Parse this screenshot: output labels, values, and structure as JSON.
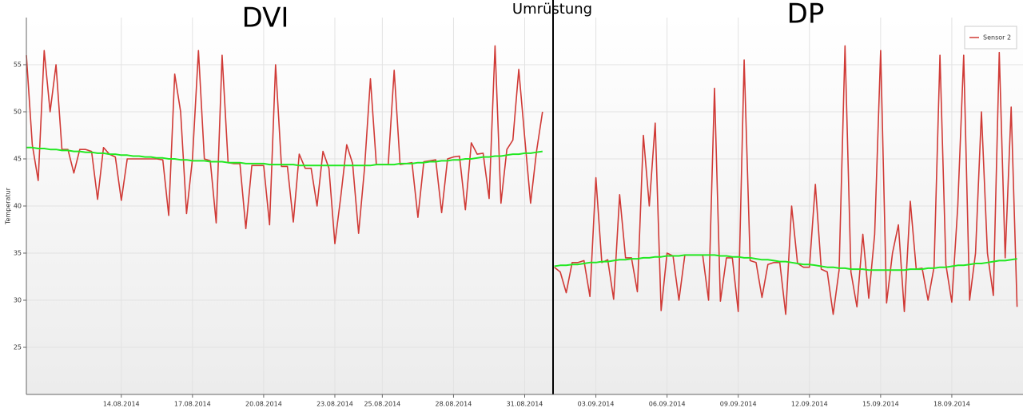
{
  "chart_data": {
    "type": "line",
    "y_label": "Temperatur",
    "annotations": [
      "DVI",
      "Umrüstung",
      "DP"
    ],
    "xlim": [
      "2014-08-10",
      "2014-09-21"
    ],
    "xticks": [
      {
        "value": "2014-08-14",
        "label": "14.08.2014"
      },
      {
        "value": "2014-08-17",
        "label": "17.08.2014"
      },
      {
        "value": "2014-08-20",
        "label": "20.08.2014"
      },
      {
        "value": "2014-08-23",
        "label": "23.08.2014"
      },
      {
        "value": "2014-08-25",
        "label": "25.08.2014"
      },
      {
        "value": "2014-08-28",
        "label": "28.08.2014"
      },
      {
        "value": "2014-08-31",
        "label": "31.08.2014"
      },
      {
        "value": "2014-09-03",
        "label": "03.09.2014"
      },
      {
        "value": "2014-09-06",
        "label": "06.09.2014"
      },
      {
        "value": "2014-09-09",
        "label": "09.09.2014"
      },
      {
        "value": "2014-09-12",
        "label": "12.09.2014"
      },
      {
        "value": "2014-09-15",
        "label": "15.09.2014"
      },
      {
        "value": "2014-09-18",
        "label": "18.09.2014"
      }
    ],
    "ylim": [
      20,
      60
    ],
    "yticks": [
      25,
      30,
      35,
      40,
      45,
      50,
      55
    ],
    "grid": true,
    "legend": "top-right",
    "series": [
      {
        "name": "Sensor 2",
        "color": "#d03a36",
        "values": [
          56,
          46.5,
          42.7,
          56.5,
          50,
          55,
          46,
          46,
          43.5,
          46,
          46,
          45.8,
          40.7,
          46.2,
          45.5,
          45.2,
          40.6,
          45,
          45,
          45,
          45,
          45,
          45,
          44.9,
          39,
          54,
          50,
          39.2,
          45,
          56.5,
          45,
          44.8,
          38.2,
          56,
          44.6,
          44.5,
          44.5,
          37.6,
          44.3,
          44.3,
          44.3,
          38,
          55,
          44.2,
          44.2,
          38.3,
          45.5,
          44,
          44,
          40,
          45.8,
          44,
          36,
          41,
          46.5,
          44.5,
          37.1,
          44,
          53.5,
          44.4,
          44.4,
          44.4,
          54.4,
          44.4,
          44.5,
          44.6,
          38.8,
          44.7,
          44.8,
          44.9,
          39.3,
          45,
          45.2,
          45.3,
          39.6,
          46.7,
          45.5,
          45.6,
          40.8,
          57,
          40.3,
          46,
          47,
          54.5,
          47.3,
          40.3,
          45.8,
          50,
          null,
          33.5,
          33,
          30.8,
          34,
          34,
          34.2,
          30.4,
          43,
          34,
          34.3,
          30.1,
          41.2,
          34.5,
          34.5,
          30.9,
          47.5,
          40,
          48.8,
          28.9,
          35,
          34.7,
          30,
          34.8,
          34.8,
          34.8,
          34.8,
          30,
          52.5,
          29.9,
          34.5,
          34.5,
          28.8,
          55.5,
          34.2,
          34,
          30.3,
          33.8,
          34,
          34,
          28.5,
          40,
          33.9,
          33.5,
          33.5,
          42.3,
          33.3,
          33,
          28.5,
          33.2,
          57,
          33,
          29.3,
          37,
          30.2,
          37,
          56.5,
          29.7,
          35,
          38,
          28.8,
          40.5,
          33.3,
          33.4,
          30,
          33.5,
          56,
          33.8,
          29.8,
          40,
          56,
          30,
          35,
          50,
          35,
          30.5,
          56.3,
          34.5,
          50.5,
          29.3
        ]
      },
      {
        "color": "#22e822",
        "values": [
          46.2,
          46.2,
          46.1,
          46.1,
          46.0,
          46.0,
          45.9,
          45.9,
          45.8,
          45.8,
          45.7,
          45.7,
          45.6,
          45.6,
          45.5,
          45.5,
          45.4,
          45.4,
          45.3,
          45.3,
          45.2,
          45.2,
          45.1,
          45.1,
          45.0,
          45.0,
          44.9,
          44.9,
          44.8,
          44.8,
          44.8,
          44.7,
          44.7,
          44.7,
          44.6,
          44.6,
          44.6,
          44.5,
          44.5,
          44.5,
          44.5,
          44.4,
          44.4,
          44.4,
          44.4,
          44.4,
          44.3,
          44.3,
          44.3,
          44.3,
          44.3,
          44.3,
          44.3,
          44.3,
          44.3,
          44.3,
          44.3,
          44.3,
          44.3,
          44.4,
          44.4,
          44.4,
          44.4,
          44.5,
          44.5,
          44.5,
          44.6,
          44.6,
          44.7,
          44.7,
          44.8,
          44.8,
          44.9,
          44.9,
          45.0,
          45.0,
          45.1,
          45.2,
          45.2,
          45.3,
          45.3,
          45.4,
          45.5,
          45.5,
          45.6,
          45.6,
          45.7,
          45.8,
          null,
          33.6,
          33.7,
          33.7,
          33.8,
          33.8,
          33.9,
          34.0,
          34.0,
          34.1,
          34.1,
          34.2,
          34.3,
          34.3,
          34.4,
          34.4,
          34.5,
          34.5,
          34.6,
          34.6,
          34.7,
          34.7,
          34.7,
          34.8,
          34.8,
          34.8,
          34.8,
          34.8,
          34.8,
          34.7,
          34.7,
          34.6,
          34.6,
          34.5,
          34.5,
          34.4,
          34.3,
          34.3,
          34.2,
          34.1,
          34.1,
          34.0,
          33.9,
          33.8,
          33.8,
          33.7,
          33.6,
          33.5,
          33.5,
          33.4,
          33.4,
          33.3,
          33.3,
          33.3,
          33.2,
          33.2,
          33.2,
          33.2,
          33.2,
          33.2,
          33.2,
          33.3,
          33.3,
          33.3,
          33.4,
          33.4,
          33.5,
          33.5,
          33.6,
          33.7,
          33.7,
          33.8,
          33.9,
          33.9,
          34.0,
          34.1,
          34.2,
          34.2,
          34.3,
          34.4
        ]
      }
    ]
  }
}
